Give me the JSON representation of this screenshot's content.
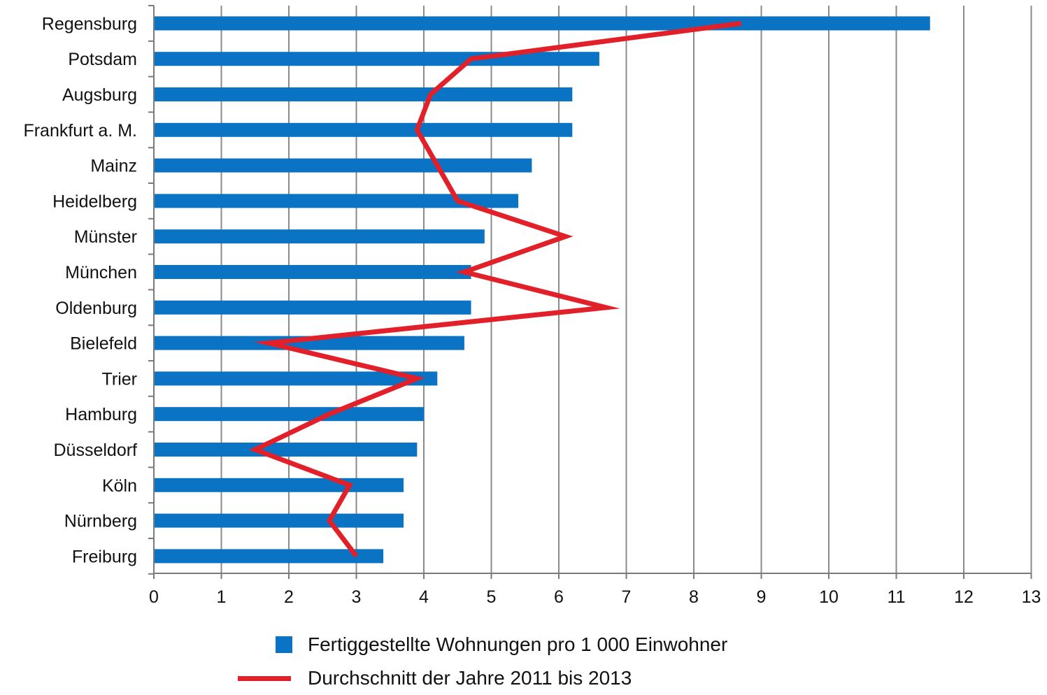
{
  "chart_data": {
    "type": "bar",
    "orientation": "horizontal",
    "title": "",
    "xlabel": "",
    "ylabel": "",
    "xlim": [
      0,
      13
    ],
    "x_ticks": [
      "0",
      "1",
      "2",
      "3",
      "4",
      "5",
      "6",
      "7",
      "8",
      "9",
      "10",
      "11",
      "12",
      "13"
    ],
    "grid": "vertical",
    "legend_position": "bottom",
    "categories": [
      "Regensburg",
      "Potsdam",
      "Augsburg",
      "Frankfurt a. M.",
      "Mainz",
      "Heidelberg",
      "Münster",
      "München",
      "Oldenburg",
      "Bielefeld",
      "Trier",
      "Hamburg",
      "Düsseldorf",
      "Köln",
      "Nürnberg",
      "Freiburg"
    ],
    "series": [
      {
        "name": "Fertiggestellte Wohnungen pro 1 000 Einwohner",
        "type": "bar",
        "color": "#0a73c4",
        "values": [
          11.5,
          6.6,
          6.2,
          6.2,
          5.6,
          5.4,
          4.9,
          4.7,
          4.7,
          4.6,
          4.2,
          4.0,
          3.9,
          3.7,
          3.7,
          3.4
        ]
      },
      {
        "name": "Durchschnitt der Jahre 2011 bis 2013",
        "type": "line",
        "color": "#e2202a",
        "values": [
          8.7,
          4.7,
          4.1,
          3.9,
          4.2,
          4.5,
          6.1,
          4.6,
          6.7,
          1.7,
          3.9,
          2.6,
          1.5,
          2.9,
          2.6,
          3.0
        ]
      }
    ]
  }
}
